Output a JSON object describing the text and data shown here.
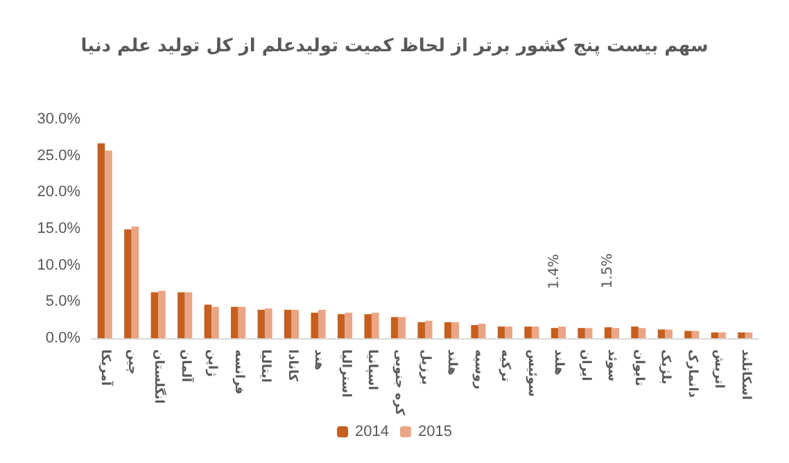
{
  "chart_data": {
    "type": "bar",
    "title": "سهم بیست پنج کشور برتر از لحاظ کمیت تولیدعلم از کل تولید علم دنیا",
    "categories": [
      "آمریکا",
      "چین",
      "انگلستان",
      "آلمان",
      "ژاپن",
      "فرانسه",
      "ایتالیا",
      "کانادا",
      "هند",
      "استرالیا",
      "اسپانیا",
      "کره جنوبی",
      "برزیل",
      "هلند",
      "روسیه",
      "ترکیه",
      "سوئیس",
      "هلند",
      "ایران",
      "سوئد",
      "تایوان",
      "بلژیک",
      "دانمارک",
      "اتریش",
      "اسکاتلند"
    ],
    "series": [
      {
        "name": "2014",
        "color": "#c65f1e",
        "values": [
          26.7,
          14.9,
          6.3,
          6.3,
          4.6,
          4.3,
          3.9,
          3.9,
          3.5,
          3.3,
          3.3,
          2.9,
          2.2,
          2.2,
          1.8,
          1.6,
          1.6,
          1.4,
          1.4,
          1.5,
          1.6,
          1.2,
          1.0,
          0.8,
          0.8
        ],
        "value_labels": [
          null,
          null,
          null,
          null,
          null,
          null,
          null,
          null,
          null,
          null,
          null,
          null,
          null,
          null,
          null,
          null,
          null,
          "1.4%",
          null,
          "1.5%",
          null,
          null,
          null,
          null,
          null
        ]
      },
      {
        "name": "2015",
        "color": "#eaa585",
        "values": [
          25.7,
          15.3,
          6.5,
          6.3,
          4.3,
          4.3,
          4.1,
          3.9,
          3.9,
          3.5,
          3.5,
          2.9,
          2.4,
          2.2,
          2.0,
          1.6,
          1.6,
          1.6,
          1.4,
          1.4,
          1.4,
          1.2,
          1.0,
          0.8,
          0.8
        ]
      }
    ],
    "ylim": [
      0,
      30
    ],
    "yticks": [
      {
        "value": 0,
        "label": "0.0%"
      },
      {
        "value": 5,
        "label": "5.0%"
      },
      {
        "value": 10,
        "label": "10.0%"
      },
      {
        "value": 15,
        "label": "15.0%"
      },
      {
        "value": 20,
        "label": "20.0%"
      },
      {
        "value": 25,
        "label": "25.0%"
      },
      {
        "value": 30,
        "label": "30.0%"
      }
    ],
    "grid": false,
    "legend": "bottom"
  }
}
